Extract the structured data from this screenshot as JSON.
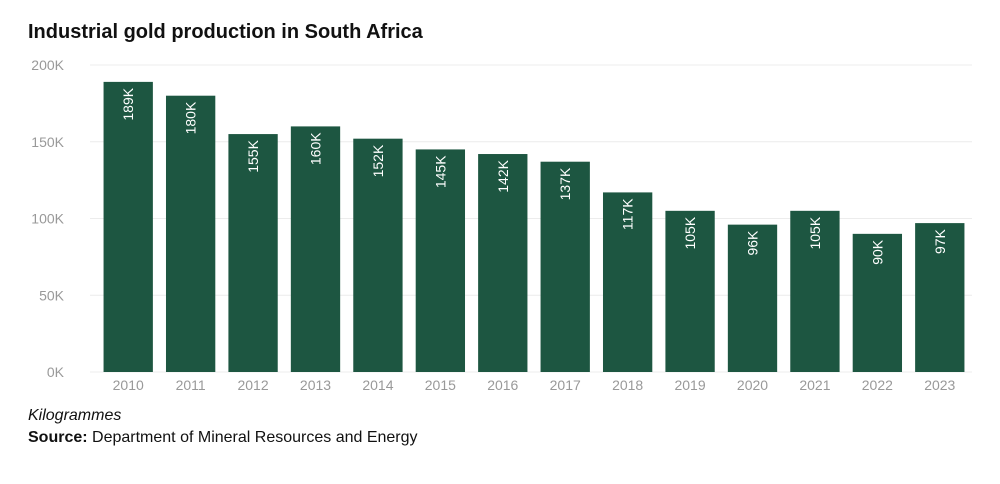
{
  "title": "Industrial gold production in South Africa",
  "unit_note": "Kilogrammes",
  "source": {
    "label": "Source:",
    "text": "Department of Mineral Resources and Energy"
  },
  "colors": {
    "bar": "#1d5641",
    "grid": "#ececec",
    "tick": "#999999",
    "label": "#ffffff"
  },
  "chart_data": {
    "type": "bar",
    "categories": [
      "2010",
      "2011",
      "2012",
      "2013",
      "2014",
      "2015",
      "2016",
      "2017",
      "2018",
      "2019",
      "2020",
      "2021",
      "2022",
      "2023"
    ],
    "values": [
      189000,
      180000,
      155000,
      160000,
      152000,
      145000,
      142000,
      137000,
      117000,
      105000,
      96000,
      105000,
      90000,
      97000
    ],
    "data_labels": [
      "189K",
      "180K",
      "155K",
      "160K",
      "152K",
      "145K",
      "142K",
      "137K",
      "117K",
      "105K",
      "96K",
      "105K",
      "90K",
      "97K"
    ],
    "yticks": [
      0,
      50000,
      100000,
      150000,
      200000
    ],
    "ytick_labels": [
      "0K",
      "50K",
      "100K",
      "150K",
      "200K"
    ],
    "ylim": [
      0,
      200000
    ],
    "grid": true,
    "title": "Industrial gold production in South Africa"
  }
}
